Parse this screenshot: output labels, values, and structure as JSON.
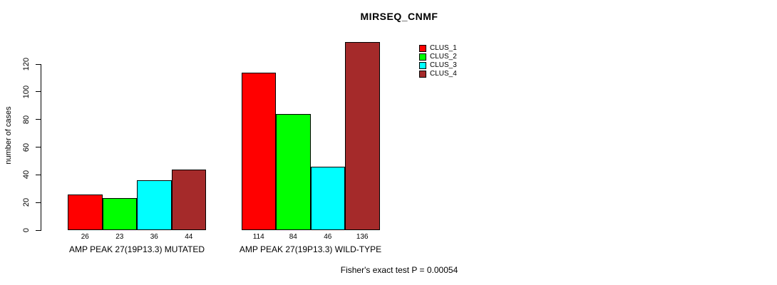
{
  "chart_data": {
    "type": "bar",
    "title": "MIRSEQ_CNMF",
    "ylabel": "number of cases",
    "xlabel": "",
    "ylim": [
      0,
      136
    ],
    "yticks": [
      0,
      20,
      40,
      60,
      80,
      100,
      120
    ],
    "grid": false,
    "legend_position": "top-right-inside",
    "bar_value_labels_shown": true,
    "categories": [
      "AMP PEAK 27(19P13.3) MUTATED",
      "AMP PEAK 27(19P13.3) WILD-TYPE"
    ],
    "series": [
      {
        "name": "CLUS_1",
        "color": "#ff0000",
        "values": [
          26,
          114
        ]
      },
      {
        "name": "CLUS_2",
        "color": "#00ff00",
        "values": [
          23,
          84
        ]
      },
      {
        "name": "CLUS_3",
        "color": "#00ffff",
        "values": [
          36,
          46
        ]
      },
      {
        "name": "CLUS_4",
        "color": "#a52a2a",
        "values": [
          44,
          136
        ]
      }
    ],
    "annotation": "Fisher's exact test P = 0.00054",
    "axis_color": "#000000",
    "bar_border_color": "#000000"
  }
}
